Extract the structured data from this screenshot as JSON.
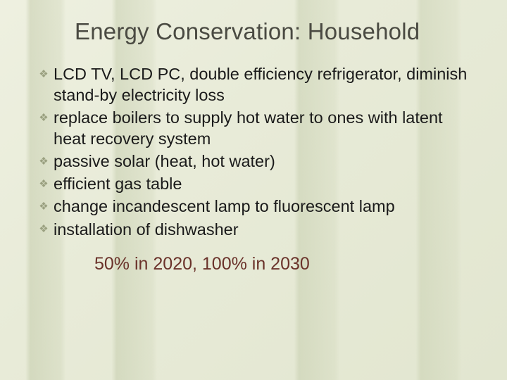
{
  "slide": {
    "title": "Energy Conservation: Household",
    "title_color": "#4a4a42",
    "title_fontsize": 33,
    "background_gradient": [
      "#eef0e0",
      "#e2e6d0"
    ],
    "bullet_icon_glyph": "❖",
    "bullet_icon_color": "#9aa080",
    "bullet_fontsize": 23.5,
    "bullet_text_color": "#1a1a1a",
    "bullets": [
      "LCD TV, LCD PC, double efficiency refrigerator, diminish stand-by electricity loss",
      "replace boilers to supply hot water to ones with latent heat recovery system",
      "passive solar (heat, hot water)",
      "efficient gas table",
      "change incandescent lamp to fluorescent lamp",
      "installation of dishwasher"
    ],
    "footer_text": "50% in 2020, 100% in 2030",
    "footer_color": "#6a322a",
    "footer_fontsize": 25
  }
}
